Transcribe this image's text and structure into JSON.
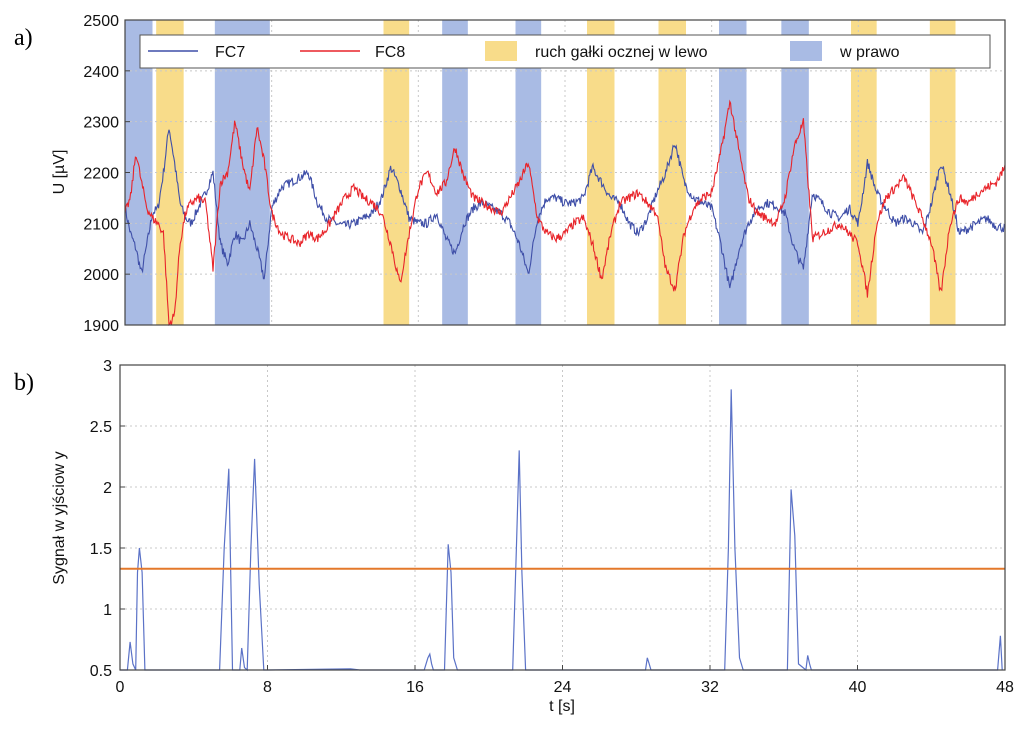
{
  "chart_data": [
    {
      "panel_label": "a)",
      "type": "line",
      "ylabel": "U [µV]",
      "xlim": [
        0,
        48
      ],
      "ylim": [
        1900,
        2500
      ],
      "y_ticks": [
        "1900",
        "2000",
        "2100",
        "2200",
        "2300",
        "2400",
        "2500"
      ],
      "grid": true,
      "legend_position": "top",
      "legend": {
        "fc7": "FC7",
        "fc8": "FC8",
        "left": "ruch gałki ocznej w lewo",
        "right": "w prawo"
      },
      "colors": {
        "fc7": "#3f4fa8",
        "fc8": "#e8242a",
        "left_band": "#f8dc8a",
        "right_band": "#a9bbe4"
      },
      "bands_right": [
        [
          0.0,
          1.5
        ],
        [
          4.9,
          7.9
        ],
        [
          17.3,
          18.7
        ],
        [
          21.3,
          22.7
        ],
        [
          32.4,
          33.9
        ],
        [
          35.8,
          37.3
        ]
      ],
      "bands_left": [
        [
          1.7,
          3.2
        ],
        [
          14.1,
          15.5
        ],
        [
          25.2,
          26.7
        ],
        [
          29.1,
          30.6
        ],
        [
          39.6,
          41.0
        ],
        [
          43.9,
          45.3
        ]
      ],
      "series": [
        {
          "name": "FC7",
          "x": [
            0,
            0.3,
            0.6,
            0.9,
            1.2,
            1.5,
            1.8,
            2.1,
            2.4,
            2.7,
            3.0,
            3.3,
            3.6,
            4.0,
            4.4,
            4.8,
            5.2,
            5.6,
            6.0,
            6.4,
            6.8,
            7.2,
            7.6,
            8.0,
            8.5,
            9.0,
            9.5,
            10.0,
            10.5,
            11.0,
            11.5,
            12.0,
            12.5,
            13.0,
            13.5,
            14.0,
            14.5,
            15.0,
            15.5,
            16.0,
            16.5,
            17.0,
            17.5,
            18.0,
            18.5,
            19.0,
            19.5,
            20.0,
            20.5,
            21.0,
            21.5,
            22.0,
            22.5,
            23.0,
            23.5,
            24.0,
            24.5,
            25.0,
            25.5,
            26.0,
            26.5,
            27.0,
            27.5,
            28.0,
            28.5,
            29.0,
            29.5,
            30.0,
            30.5,
            31.0,
            31.5,
            32.0,
            32.5,
            33.0,
            33.5,
            34.0,
            34.5,
            35.0,
            35.5,
            36.0,
            36.5,
            37.0,
            37.5,
            38.0,
            38.5,
            39.0,
            39.5,
            40.0,
            40.5,
            41.0,
            41.5,
            42.0,
            42.5,
            43.0,
            43.5,
            44.0,
            44.5,
            45.0,
            45.5,
            46.0,
            46.5,
            47.0,
            47.5,
            48.0
          ],
          "values": [
            2130,
            2080,
            2050,
            2000,
            2060,
            2120,
            2130,
            2200,
            2290,
            2220,
            2140,
            2110,
            2100,
            2130,
            2160,
            2200,
            2060,
            2020,
            2080,
            2060,
            2100,
            2050,
            1990,
            2130,
            2170,
            2180,
            2190,
            2200,
            2140,
            2110,
            2100,
            2095,
            2100,
            2110,
            2120,
            2150,
            2210,
            2170,
            2110,
            2100,
            2100,
            2120,
            2070,
            2040,
            2100,
            2130,
            2140,
            2130,
            2120,
            2100,
            2060,
            2000,
            2110,
            2150,
            2150,
            2140,
            2140,
            2150,
            2210,
            2180,
            2150,
            2140,
            2100,
            2080,
            2110,
            2160,
            2200,
            2260,
            2180,
            2150,
            2140,
            2130,
            2060,
            1970,
            2050,
            2100,
            2130,
            2140,
            2135,
            2120,
            2050,
            2010,
            2160,
            2140,
            2120,
            2110,
            2130,
            2100,
            2220,
            2160,
            2130,
            2100,
            2110,
            2100,
            2080,
            2140,
            2220,
            2160,
            2080,
            2090,
            2100,
            2110,
            2095,
            2090
          ]
        },
        {
          "name": "FC8",
          "x": [
            0,
            0.3,
            0.6,
            0.9,
            1.2,
            1.5,
            1.8,
            2.1,
            2.4,
            2.7,
            3.0,
            3.3,
            3.6,
            4.0,
            4.4,
            4.8,
            5.2,
            5.6,
            6.0,
            6.4,
            6.8,
            7.2,
            7.6,
            8.0,
            8.5,
            9.0,
            9.5,
            10.0,
            10.5,
            11.0,
            11.5,
            12.0,
            12.5,
            13.0,
            13.5,
            14.0,
            14.5,
            15.0,
            15.5,
            16.0,
            16.5,
            17.0,
            17.5,
            18.0,
            18.5,
            19.0,
            19.5,
            20.0,
            20.5,
            21.0,
            21.5,
            22.0,
            22.5,
            23.0,
            23.5,
            24.0,
            24.5,
            25.0,
            25.5,
            26.0,
            26.5,
            27.0,
            27.5,
            28.0,
            28.5,
            29.0,
            29.5,
            30.0,
            30.5,
            31.0,
            31.5,
            32.0,
            32.5,
            33.0,
            33.5,
            34.0,
            34.5,
            35.0,
            35.5,
            36.0,
            36.5,
            37.0,
            37.5,
            38.0,
            38.5,
            39.0,
            39.5,
            40.0,
            40.5,
            41.0,
            41.5,
            42.0,
            42.5,
            43.0,
            43.5,
            44.0,
            44.5,
            45.0,
            45.5,
            46.0,
            46.5,
            47.0,
            47.5,
            48.0
          ],
          "values": [
            2120,
            2150,
            2240,
            2180,
            2130,
            2110,
            2100,
            2080,
            1900,
            1920,
            2060,
            2120,
            2140,
            2150,
            2140,
            2010,
            2180,
            2200,
            2300,
            2220,
            2160,
            2290,
            2220,
            2120,
            2080,
            2070,
            2060,
            2080,
            2070,
            2090,
            2120,
            2150,
            2170,
            2150,
            2140,
            2120,
            2060,
            1980,
            2080,
            2170,
            2200,
            2160,
            2180,
            2250,
            2190,
            2150,
            2140,
            2130,
            2120,
            2150,
            2180,
            2220,
            2110,
            2080,
            2070,
            2080,
            2100,
            2110,
            2060,
            1990,
            2080,
            2140,
            2150,
            2160,
            2140,
            2120,
            2010,
            1970,
            2080,
            2130,
            2150,
            2160,
            2240,
            2340,
            2240,
            2150,
            2120,
            2110,
            2100,
            2150,
            2250,
            2300,
            2070,
            2080,
            2090,
            2100,
            2080,
            2060,
            1960,
            2100,
            2150,
            2170,
            2190,
            2150,
            2110,
            2060,
            1960,
            2100,
            2150,
            2140,
            2160,
            2170,
            2180,
            2210
          ]
        }
      ]
    },
    {
      "panel_label": "b)",
      "type": "line",
      "ylabel": "Sygnał w yjściow y",
      "xlabel": "t [s]",
      "xlim": [
        0,
        48
      ],
      "ylim": [
        0.5,
        3
      ],
      "x_ticks": [
        "0",
        "8",
        "16",
        "24",
        "32",
        "40",
        "48"
      ],
      "y_ticks": [
        "0.5",
        "1",
        "1.5",
        "2",
        "2.5",
        "3"
      ],
      "grid": true,
      "threshold": 1.33,
      "colors": {
        "signal": "#5b72c7",
        "threshold": "#e4782a"
      },
      "series": [
        {
          "name": "",
          "x": [
            0,
            0.4,
            0.55,
            0.7,
            0.85,
            0.95,
            1.05,
            1.2,
            1.35,
            1.5,
            5.3,
            5.4,
            5.65,
            5.9,
            6.1,
            6.5,
            6.6,
            6.75,
            6.9,
            7.1,
            7.3,
            7.55,
            7.8,
            8.0,
            12.5,
            13.0,
            16.5,
            16.7,
            16.8,
            16.9,
            17.0,
            17.6,
            17.8,
            17.95,
            18.1,
            18.3,
            21.3,
            21.5,
            21.65,
            21.8,
            22.0,
            28.5,
            28.6,
            28.7,
            28.8,
            29.0,
            32.8,
            33.0,
            33.15,
            33.35,
            33.6,
            33.8,
            36.2,
            36.4,
            36.6,
            36.8,
            37.2,
            37.3,
            37.4,
            37.5,
            47.6,
            47.75,
            47.85
          ],
          "values": [
            0.5,
            0.5,
            0.73,
            0.55,
            0.5,
            1.3,
            1.5,
            1.3,
            0.5,
            0.5,
            0.5,
            0.5,
            1.5,
            2.15,
            0.5,
            0.5,
            0.68,
            0.52,
            0.5,
            1.5,
            2.23,
            1.2,
            0.5,
            0.5,
            0.51,
            0.5,
            0.5,
            0.6,
            0.63,
            0.55,
            0.5,
            0.5,
            1.53,
            1.3,
            0.6,
            0.5,
            0.5,
            1.5,
            2.3,
            1.3,
            0.5,
            0.5,
            0.6,
            0.55,
            0.5,
            0.5,
            0.5,
            1.5,
            2.8,
            1.5,
            0.6,
            0.5,
            0.5,
            1.98,
            1.6,
            0.55,
            0.5,
            0.62,
            0.55,
            0.5,
            0.5,
            0.78,
            0.5
          ]
        }
      ]
    }
  ]
}
